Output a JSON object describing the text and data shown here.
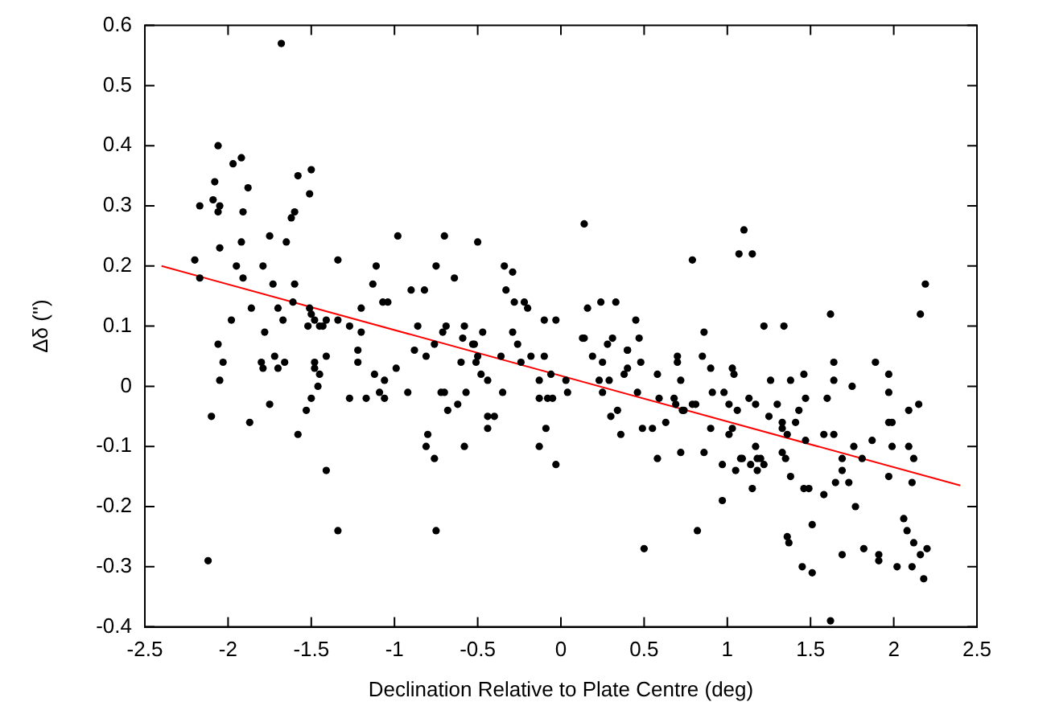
{
  "chart_data": {
    "type": "scatter",
    "xlabel": "Declination Relative to Plate Centre (deg)",
    "ylabel": "Δδ ('')",
    "xlim": [
      -2.5,
      2.5
    ],
    "ylim": [
      -0.4,
      0.6
    ],
    "xticks": [
      -2.5,
      -2,
      -1.5,
      -1,
      -0.5,
      0,
      0.5,
      1,
      1.5,
      2,
      2.5
    ],
    "yticks": [
      -0.4,
      -0.3,
      -0.2,
      -0.1,
      0,
      0.1,
      0.2,
      0.3,
      0.4,
      0.5,
      0.6
    ],
    "grid": false,
    "legend": false,
    "series": [
      {
        "color": "#000000",
        "marker": "circle",
        "x": [
          -1.68,
          -2.06,
          -1.92,
          -1.97,
          -1.5,
          -2.08,
          -1.58,
          -1.88,
          -1.51,
          -2.17,
          -2.09,
          -2.05,
          -2.06,
          -1.91,
          -1.6,
          -1.62,
          -0.98,
          -0.7,
          -1.75,
          -1.92,
          -1.65,
          -2.05,
          -0.5,
          -2.2,
          -1.34,
          -1.79,
          -1.11,
          -0.75,
          -0.34,
          -1.95,
          -0.29,
          -0.64,
          -2.17,
          -1.91,
          -1.6,
          -1.73,
          -1.13,
          -0.9,
          -0.82,
          -0.33,
          -1.61,
          -1.07,
          -1.04,
          -0.28,
          -0.22,
          -0.2,
          -1.86,
          -1.7,
          -1.2,
          -1.51,
          -1.5,
          -1.48,
          -1.34,
          -1.98,
          -1.67,
          -1.41,
          -0.86,
          -0.69,
          -0.58,
          -0.1,
          -0.03,
          -0.29,
          -0.71,
          -0.59,
          -0.47,
          -1.45,
          -1.43,
          -1.27,
          -1.2,
          -1.52,
          -1.78,
          -2.06,
          -0.76,
          -0.53,
          -0.52,
          -0.26,
          0.14,
          1.1,
          1.07,
          1.15,
          0.79,
          2.19,
          0.16,
          0.24,
          0.33,
          0.45,
          1.62,
          2.16,
          0.13,
          0.14,
          0.28,
          0.31,
          0.47,
          0.86,
          1.22,
          1.34,
          0.4,
          -2.03,
          -2.05,
          -2.1,
          -1.87,
          -1.8,
          -1.79,
          -1.72,
          -1.7,
          -1.66,
          -1.75,
          -1.58,
          -1.53,
          -1.5,
          -1.48,
          -1.48,
          -1.45,
          -1.46,
          -1.41,
          -1.41,
          -1.34,
          -2.12,
          -1.27,
          -1.22,
          -1.22,
          -1.17,
          -1.12,
          -1.09,
          -1.06,
          -1.06,
          -0.99,
          -0.92,
          -0.88,
          -0.81,
          -0.8,
          -0.81,
          -0.76,
          -0.75,
          -0.72,
          -0.7,
          -0.68,
          -0.62,
          -0.6,
          -0.58,
          -0.57,
          -0.51,
          -0.5,
          -0.48,
          -0.44,
          -0.44,
          -0.4,
          -0.44,
          -0.36,
          -0.35,
          -0.24,
          -0.18,
          -0.1,
          -0.13,
          -0.13,
          -0.09,
          -0.13,
          -0.08,
          -0.05,
          -0.06,
          -0.03,
          0.03,
          0.04,
          0.19,
          0.25,
          0.23,
          0.25,
          0.29,
          0.4,
          0.4,
          0.38,
          0.3,
          0.34,
          0.36,
          0.46,
          0.48,
          0.49,
          0.55,
          0.58,
          0.59,
          0.58,
          0.63,
          0.7,
          0.7,
          0.68,
          0.69,
          0.72,
          0.73,
          0.74,
          0.72,
          0.79,
          0.81,
          0.85,
          0.86,
          0.9,
          0.91,
          0.9,
          0.82,
          0.5,
          0.98,
          1.01,
          1.01,
          0.97,
          0.97,
          1.03,
          1.04,
          1.03,
          1.06,
          1.05,
          1.08,
          1.09,
          1.13,
          1.14,
          1.15,
          1.17,
          1.18,
          1.18,
          1.2,
          1.22,
          1.17,
          1.26,
          1.25,
          1.3,
          1.33,
          1.33,
          1.36,
          1.33,
          1.35,
          1.38,
          1.38,
          1.41,
          1.43,
          1.46,
          1.47,
          1.47,
          1.46,
          1.49,
          1.36,
          1.37,
          1.45,
          1.51,
          1.51,
          1.58,
          1.6,
          1.58,
          1.64,
          1.64,
          1.64,
          1.65,
          1.69,
          1.69,
          1.73,
          1.76,
          1.77,
          1.69,
          1.75,
          1.81,
          1.87,
          1.82,
          1.89,
          1.91,
          1.91,
          1.62,
          1.97,
          1.97,
          1.97,
          1.99,
          1.99,
          1.97,
          2.02,
          2.06,
          2.08,
          2.09,
          2.09,
          2.12,
          2.11,
          2.12,
          2.11,
          2.15,
          2.16,
          2.2,
          2.18
        ],
        "values": [
          0.57,
          0.4,
          0.38,
          0.37,
          0.36,
          0.34,
          0.35,
          0.33,
          0.32,
          0.3,
          0.31,
          0.3,
          0.29,
          0.29,
          0.29,
          0.28,
          0.25,
          0.25,
          0.25,
          0.24,
          0.24,
          0.23,
          0.24,
          0.21,
          0.21,
          0.2,
          0.2,
          0.2,
          0.2,
          0.2,
          0.19,
          0.18,
          0.18,
          0.18,
          0.17,
          0.17,
          0.17,
          0.16,
          0.16,
          0.16,
          0.14,
          0.14,
          0.14,
          0.14,
          0.14,
          0.13,
          0.13,
          0.13,
          0.13,
          0.13,
          0.12,
          0.11,
          0.11,
          0.11,
          0.11,
          0.11,
          0.1,
          0.1,
          0.1,
          0.11,
          0.11,
          0.09,
          0.09,
          0.08,
          0.09,
          0.1,
          0.1,
          0.1,
          0.09,
          0.1,
          0.09,
          0.07,
          0.07,
          0.07,
          0.07,
          0.07,
          0.27,
          0.26,
          0.22,
          0.22,
          0.21,
          0.17,
          0.13,
          0.14,
          0.14,
          0.11,
          0.12,
          0.12,
          0.08,
          0.08,
          0.07,
          0.08,
          0.08,
          0.09,
          0.1,
          0.1,
          0.06,
          0.04,
          0.01,
          -0.05,
          -0.06,
          0.04,
          0.03,
          0.05,
          0.03,
          0.04,
          -0.03,
          -0.08,
          -0.04,
          -0.02,
          0.04,
          0.03,
          0.02,
          0,
          0.05,
          -0.14,
          -0.24,
          -0.29,
          -0.02,
          0.06,
          0.04,
          -0.02,
          0.02,
          -0.01,
          0.01,
          -0.02,
          0.03,
          -0.01,
          0.06,
          0.05,
          -0.08,
          -0.1,
          -0.12,
          -0.24,
          -0.01,
          -0.01,
          -0.04,
          -0.03,
          0.04,
          -0.1,
          -0.01,
          0.04,
          0.05,
          0.02,
          0.01,
          -0.05,
          -0.05,
          -0.07,
          0.05,
          -0.01,
          0.04,
          0.05,
          0.05,
          0.01,
          -0.02,
          -0.07,
          -0.1,
          -0.02,
          -0.02,
          0.02,
          -0.13,
          0.01,
          -0.01,
          0.05,
          0.04,
          0.01,
          -0.01,
          0.01,
          0.06,
          0.03,
          0.02,
          -0.05,
          -0.04,
          -0.08,
          -0.01,
          0.04,
          -0.07,
          -0.07,
          0.02,
          -0.02,
          -0.12,
          -0.06,
          0.05,
          0.04,
          -0.02,
          -0.03,
          0.01,
          -0.04,
          -0.04,
          -0.11,
          -0.03,
          -0.03,
          0.05,
          -0.11,
          0.03,
          -0.01,
          -0.07,
          -0.24,
          -0.27,
          -0.01,
          -0.03,
          -0.08,
          -0.13,
          -0.19,
          0.03,
          0.02,
          -0.07,
          -0.04,
          -0.14,
          -0.12,
          -0.12,
          -0.02,
          -0.13,
          -0.17,
          -0.1,
          -0.12,
          -0.14,
          -0.12,
          -0.13,
          -0.03,
          0.01,
          -0.05,
          -0.03,
          -0.06,
          -0.07,
          -0.08,
          -0.11,
          -0.12,
          -0.15,
          0.01,
          -0.06,
          -0.04,
          0.02,
          -0.02,
          -0.09,
          -0.17,
          -0.17,
          -0.25,
          -0.26,
          -0.3,
          -0.31,
          -0.23,
          -0.18,
          -0.02,
          -0.08,
          0.04,
          0.01,
          -0.08,
          -0.16,
          -0.14,
          -0.12,
          -0.16,
          -0.1,
          -0.2,
          -0.28,
          0,
          -0.12,
          -0.09,
          -0.27,
          0.04,
          -0.28,
          -0.29,
          -0.39,
          0.02,
          -0.01,
          -0.06,
          -0.06,
          -0.1,
          -0.15,
          -0.3,
          -0.22,
          -0.24,
          -0.04,
          -0.1,
          -0.12,
          -0.16,
          -0.26,
          -0.3,
          -0.03,
          -0.28,
          -0.27,
          -0.32
        ]
      },
      {
        "type": "line",
        "color": "#ff0000",
        "x": [
          -2.4,
          2.4
        ],
        "values": [
          0.2,
          -0.165
        ]
      }
    ]
  }
}
